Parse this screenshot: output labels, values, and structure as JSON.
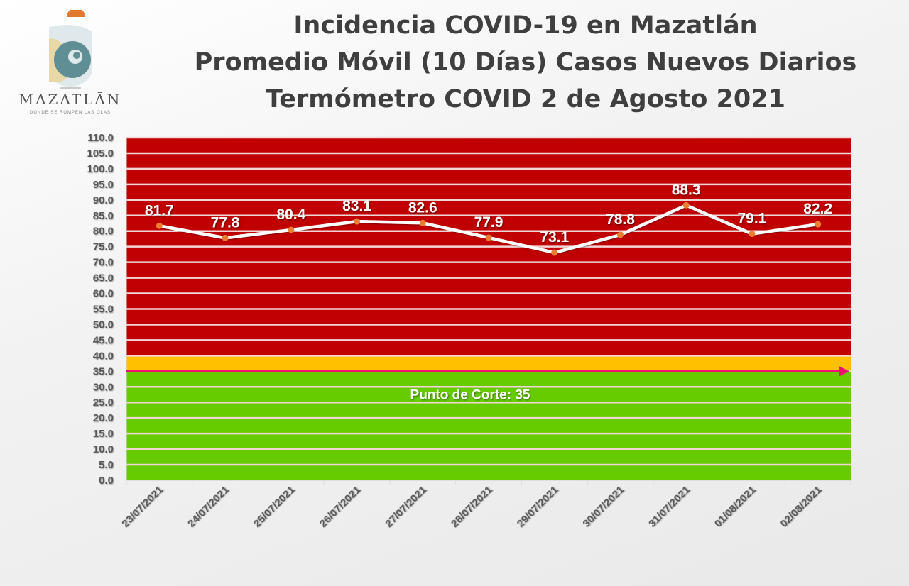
{
  "logo": {
    "name": "MAZATLĀN",
    "tagline": "DONDE SE ROMPEN LAS OLAS"
  },
  "title_lines": [
    "Incidencia COVID-19 en Mazatlán",
    "Promedio Móvil (10 Días) Casos Nuevos Diarios",
    "Termómetro COVID 2 de Agosto 2021"
  ],
  "chart_data": {
    "type": "line",
    "title": "Incidencia COVID-19 en Mazatlán - Promedio Móvil (10 Días) Casos Nuevos Diarios - Termómetro COVID 2 de Agosto 2021",
    "xlabel": "",
    "ylabel": "",
    "ylim": [
      0,
      110
    ],
    "ytick_step": 5,
    "grid": true,
    "categories": [
      "23/07/2021",
      "24/07/2021",
      "25/07/2021",
      "26/07/2021",
      "27/07/2021",
      "28/07/2021",
      "29/07/2021",
      "30/07/2021",
      "31/07/2021",
      "01/08/2021",
      "02/08/2021"
    ],
    "series": [
      {
        "name": "Promedio Móvil 10 días",
        "values": [
          81.7,
          77.8,
          80.4,
          83.1,
          82.6,
          77.9,
          73.1,
          78.8,
          88.3,
          79.1,
          82.2
        ]
      }
    ],
    "bands": [
      {
        "from": 40,
        "to": 110,
        "color": "#c00000"
      },
      {
        "from": 35,
        "to": 40,
        "color": "#ffc000"
      },
      {
        "from": 0,
        "to": 35,
        "color": "#66cc00"
      }
    ],
    "threshold": {
      "value": 35,
      "label": "Punto de Corte: 35",
      "color": "#f0126e"
    },
    "line_color": "#ffffff",
    "marker_color": "#ed7d31"
  }
}
